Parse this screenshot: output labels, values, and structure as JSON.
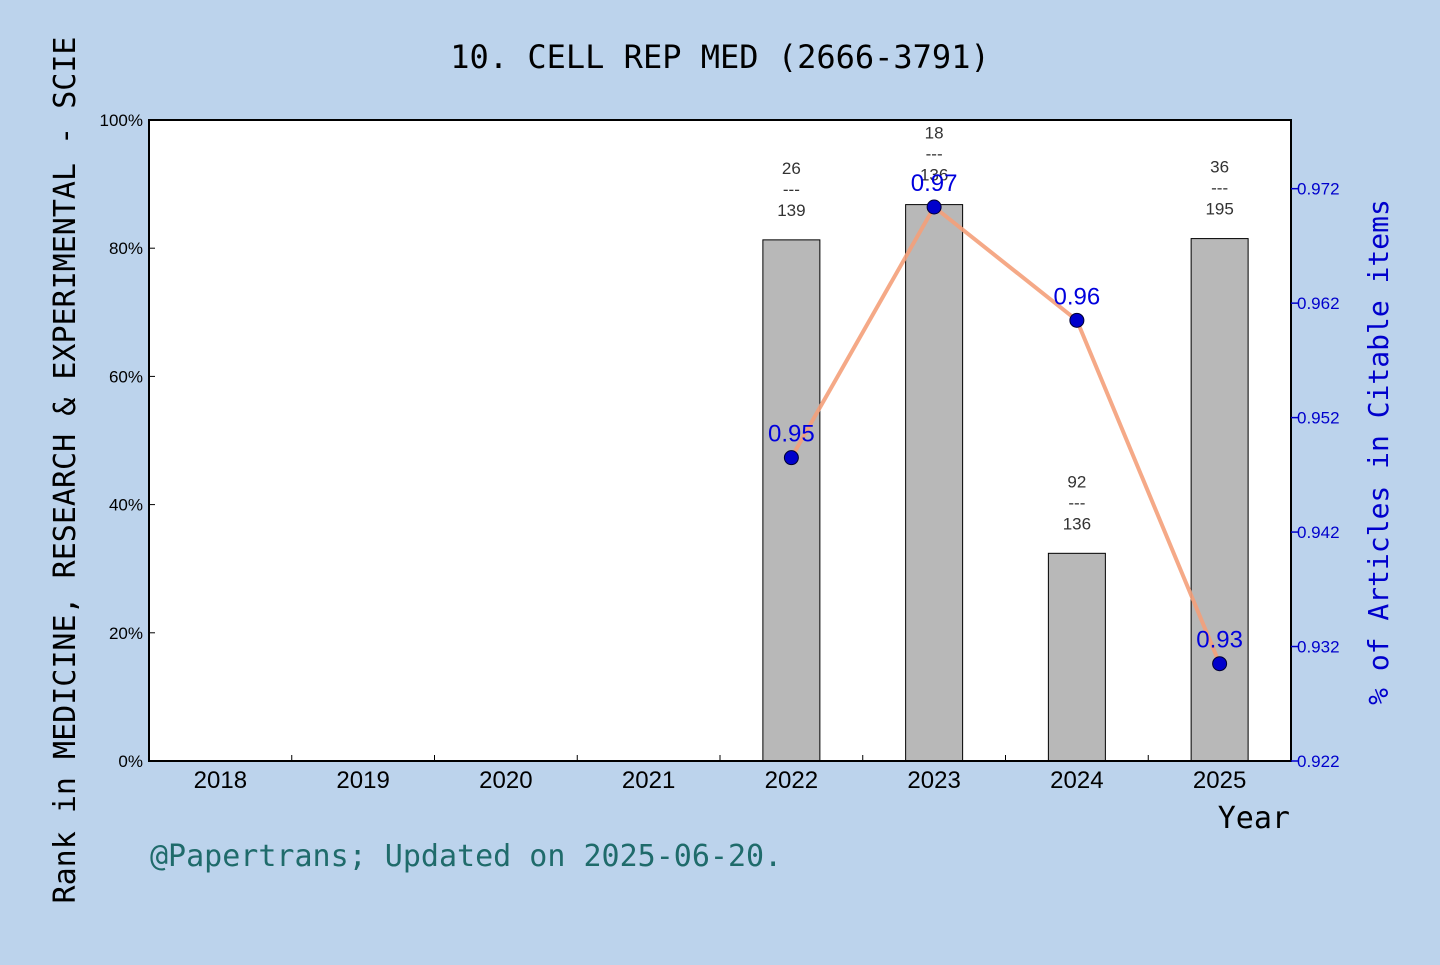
{
  "chart_data": {
    "type": "bar",
    "title": "10. CELL REP MED (2666-3791)",
    "xlabel": "Year",
    "ylabel": "Rank in MEDICINE, RESEARCH & EXPERIMENTAL - SCIE",
    "y2label": "% of Articles in Citable items",
    "footer": "@Papertrans; Updated on 2025-06-20.",
    "categories": [
      "2018",
      "2019",
      "2020",
      "2021",
      "2022",
      "2023",
      "2024",
      "2025"
    ],
    "ylim": [
      0,
      100
    ],
    "yticks": [
      "0%",
      "20%",
      "40%",
      "60%",
      "80%",
      "100%"
    ],
    "y2lim": [
      0.922,
      0.978
    ],
    "y2ticks": [
      "0.922",
      "0.932",
      "0.942",
      "0.952",
      "0.962",
      "0.972"
    ],
    "bars": [
      {
        "year": "2022",
        "percent": 81.3,
        "rank": "26",
        "total": "139",
        "sep": "---"
      },
      {
        "year": "2023",
        "percent": 86.8,
        "rank": "18",
        "total": "136",
        "sep": "---"
      },
      {
        "year": "2024",
        "percent": 32.4,
        "rank": "92",
        "total": "136",
        "sep": "---"
      },
      {
        "year": "2025",
        "percent": 81.5,
        "rank": "36",
        "total": "195",
        "sep": "---"
      }
    ],
    "line": [
      {
        "year": "2022",
        "value": 0.9485,
        "label": "0.95"
      },
      {
        "year": "2023",
        "value": 0.9704,
        "label": "0.97"
      },
      {
        "year": "2024",
        "value": 0.9605,
        "label": "0.96"
      },
      {
        "year": "2025",
        "value": 0.9305,
        "label": "0.93"
      }
    ],
    "colors": {
      "background": "#bcd3ec",
      "bar": "#b8b8b8",
      "line": "#f4a07a",
      "marker": "#0000cc",
      "right_axis": "#0000cc",
      "footer": "#1f6b6b"
    }
  }
}
